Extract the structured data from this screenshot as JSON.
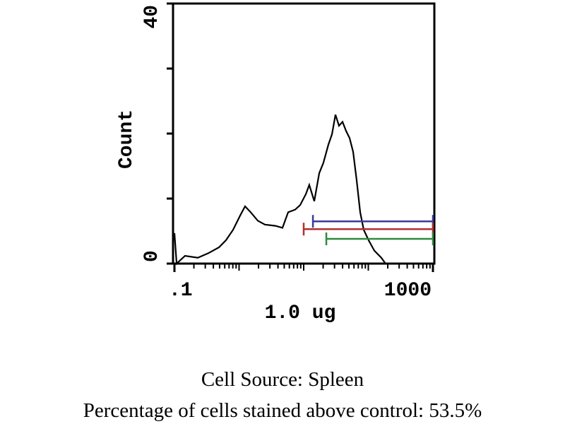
{
  "chart_data": {
    "type": "histogram-line",
    "x_label": "1.0 ug",
    "y_label": "Count",
    "captions": [
      "Cell Source:  Spleen",
      "Percentage of cells stained above control: 53.5%"
    ],
    "x": [
      0.1,
      0.108,
      0.146,
      0.23,
      0.335,
      0.489,
      0.628,
      0.807,
      1.04,
      1.24,
      1.51,
      1.95,
      2.51,
      3.66,
      4.7,
      5.75,
      7.39,
      8.82,
      10.8,
      12.2,
      14.6,
      17.4,
      20.2,
      24.1,
      27.4,
      31.0,
      35.2,
      39.9,
      45.3,
      51.3,
      58.2,
      66.0,
      74.8,
      84.9,
      101,
      124,
      159,
      185
    ],
    "values": [
      4.7,
      0,
      1.2,
      0.9,
      1.6,
      2.5,
      3.6,
      5.2,
      7.4,
      8.8,
      7.9,
      6.6,
      6.0,
      5.8,
      5.5,
      7.9,
      8.3,
      9.0,
      10.7,
      12.1,
      9.6,
      13.9,
      15.5,
      18.3,
      19.9,
      22.9,
      21.2,
      21.8,
      20.4,
      19.3,
      17.2,
      12.8,
      7.9,
      5.2,
      3.6,
      2.0,
      0.9,
      0
    ],
    "color": "#000000",
    "log_x": true,
    "xlim": [
      0.1,
      1000
    ],
    "xticks": [
      {
        "value": 0.1,
        "label": ".1"
      },
      1000
    ],
    "ylim": [
      0,
      40
    ],
    "yticks": [
      0,
      40
    ],
    "y_minor_ticks": [
      10,
      20,
      30
    ],
    "gates": [
      {
        "color": "#3b3b9a",
        "start": 13.9,
        "end": 1000,
        "level": 6.5
      },
      {
        "color": "#b03030",
        "start": 10,
        "end": 1000,
        "level": 5.3
      },
      {
        "color": "#2e8b3e",
        "start": 22.4,
        "end": 1000,
        "level": 3.8
      }
    ]
  }
}
